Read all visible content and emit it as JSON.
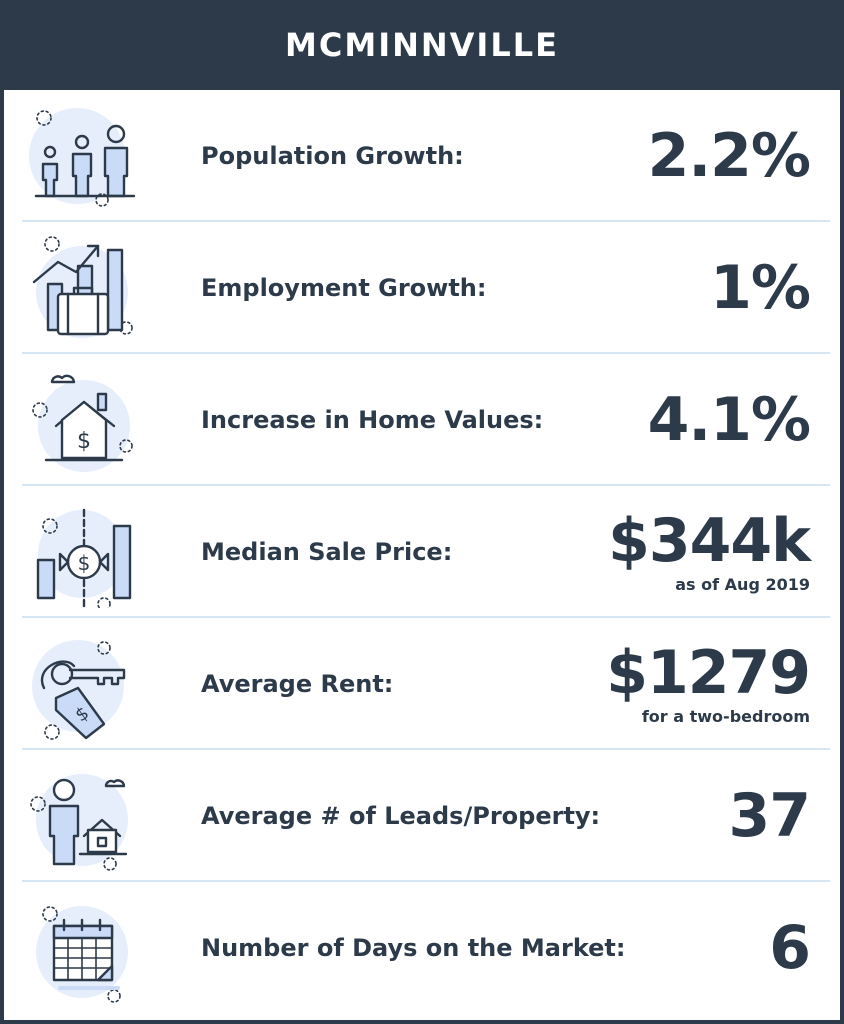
{
  "title": "MCMINNVILLE",
  "stats": [
    {
      "label": "Population Growth:",
      "value": "2.2%",
      "sub": "",
      "icon": "people-icon"
    },
    {
      "label": "Employment Growth:",
      "value": "1%",
      "sub": "",
      "icon": "briefcase-growth-icon"
    },
    {
      "label": "Increase in Home Values:",
      "value": "4.1%",
      "sub": "",
      "icon": "house-dollar-icon"
    },
    {
      "label": "Median Sale Price:",
      "value": "$344k",
      "sub": "as  of Aug 2019",
      "icon": "price-chart-icon"
    },
    {
      "label": "Average Rent:",
      "value": "$1279",
      "sub": "for a two-bedroom",
      "icon": "key-tag-icon"
    },
    {
      "label": "Average # of Leads/Property:",
      "value": "37",
      "sub": "",
      "icon": "person-house-icon"
    },
    {
      "label": "Number of Days on the Market:",
      "value": "6",
      "sub": "",
      "icon": "calendar-icon"
    }
  ],
  "colors": {
    "dark": "#2d3a4a",
    "accent_light_blue": "#c9dbf7",
    "highlight_mint": "#e6f8f2",
    "divider": "#d6e6f5"
  }
}
